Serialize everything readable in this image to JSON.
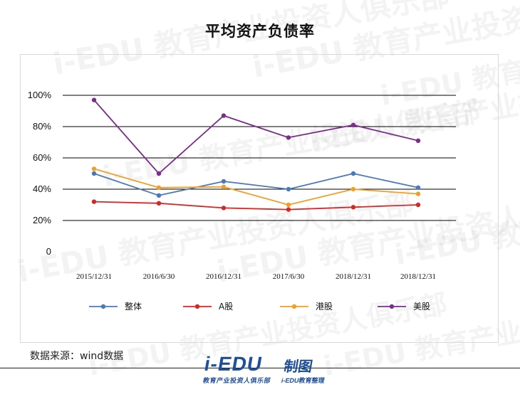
{
  "chart_data": {
    "type": "line",
    "title": "平均资产负债率",
    "categories": [
      "2015/12/31",
      "2016/6/30",
      "2016/12/31",
      "2017/6/30",
      "2018/12/31",
      "2018/12/31"
    ],
    "y_ticks": [
      "100%",
      "80%",
      "60%",
      "40%",
      "20%",
      "0"
    ],
    "ylim": [
      0,
      100
    ],
    "grid": true,
    "legend_position": "bottom",
    "series": [
      {
        "name": "整体",
        "color": "#4a79b7",
        "values": [
          50,
          36,
          45,
          40,
          50,
          41
        ]
      },
      {
        "name": "A股",
        "color": "#d62728",
        "values": [
          32,
          31,
          28,
          27,
          28.5,
          30
        ]
      },
      {
        "name": "港股",
        "color": "#f0a028",
        "values": [
          53,
          41,
          41.5,
          30,
          40,
          37
        ]
      },
      {
        "name": "美股",
        "color": "#7b2d8b",
        "values": [
          97,
          50,
          87,
          73,
          81,
          71
        ]
      }
    ]
  },
  "source_note": "数据来源：wind数据",
  "footer_logo": {
    "main": "i-EDU",
    "sub": "教育产业投资人俱乐部",
    "right": "制图",
    "right_sub": "i-EDU教育整理"
  },
  "watermarks": [
    "i-EDU 教育产业投资人俱乐部",
    "i-EDU 教育产业投资人俱乐部",
    "i-EDU 教育产业投资人俱乐部",
    "i-EDU 教育产业投资人俱乐部",
    "i-EDU 教育产业投资人俱乐部",
    "i-EDU 教育产业投资人俱乐部",
    "i-EDU 教育产业投资人俱乐部",
    "i-EDU 教育产业投资人俱乐部",
    "i-EDU 教育产业投资人俱乐部",
    "i-EDU 教育产业投资人俱乐部"
  ]
}
